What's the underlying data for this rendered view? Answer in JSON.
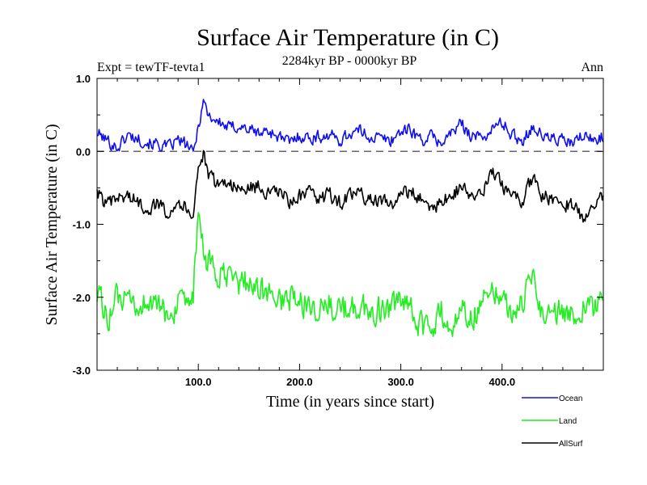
{
  "chart_data": {
    "type": "line",
    "title": "Surface Air Temperature (in C)",
    "subtitle": "2284kyr BP - 0000kyr BP",
    "expt_label": "Expt = tewTF-tevta1",
    "season_label": "Ann",
    "xlabel": "Time (in years since start)",
    "ylabel": "Surface Air Temperature (in C)",
    "xlim": [
      0,
      500
    ],
    "ylim": [
      -3.0,
      1.0
    ],
    "x_ticks": [
      100,
      200,
      300,
      400
    ],
    "x_tick_labels": [
      "100.0",
      "200.0",
      "300.0",
      "400.0"
    ],
    "y_ticks": [
      1.0,
      0.0,
      -1.0,
      -2.0,
      -3.0
    ],
    "y_tick_labels": [
      "1.0",
      "0.0",
      "-1.0",
      "-2.0",
      "-3.0"
    ],
    "reference_line": {
      "y": 0.0,
      "style": "dashed"
    },
    "legend": [
      {
        "name": "Ocean",
        "color": "#1010ee"
      },
      {
        "name": "Land",
        "color": "#22ee22"
      },
      {
        "name": "AllSurf",
        "color": "#000000"
      }
    ],
    "series": [
      {
        "name": "Ocean",
        "color": "#1010ee",
        "x": [
          0,
          10,
          20,
          30,
          40,
          50,
          60,
          70,
          80,
          90,
          95,
          100,
          105,
          110,
          120,
          130,
          140,
          150,
          160,
          170,
          180,
          190,
          200,
          210,
          220,
          230,
          240,
          250,
          260,
          270,
          280,
          290,
          300,
          310,
          320,
          330,
          340,
          350,
          360,
          370,
          380,
          390,
          400,
          410,
          420,
          430,
          440,
          450,
          460,
          470,
          480,
          490,
          500
        ],
        "values": [
          0.25,
          0.15,
          0.05,
          0.22,
          0.18,
          0.12,
          0.1,
          0.05,
          0.15,
          0.08,
          -0.05,
          0.35,
          0.7,
          0.5,
          0.4,
          0.32,
          0.35,
          0.3,
          0.25,
          0.28,
          0.2,
          0.12,
          0.22,
          0.18,
          0.2,
          0.22,
          0.15,
          0.25,
          0.28,
          0.2,
          0.18,
          0.15,
          0.28,
          0.3,
          0.15,
          0.2,
          0.12,
          0.25,
          0.38,
          0.22,
          0.18,
          0.3,
          0.4,
          0.22,
          0.15,
          0.35,
          0.2,
          0.18,
          0.15,
          0.1,
          0.22,
          0.15,
          0.22
        ]
      },
      {
        "name": "AllSurf",
        "color": "#000000",
        "x": [
          0,
          10,
          20,
          30,
          40,
          50,
          60,
          70,
          80,
          90,
          95,
          100,
          105,
          110,
          120,
          130,
          140,
          150,
          160,
          170,
          180,
          190,
          200,
          210,
          220,
          230,
          240,
          250,
          260,
          270,
          280,
          290,
          300,
          310,
          320,
          330,
          340,
          350,
          360,
          370,
          380,
          390,
          400,
          410,
          420,
          430,
          440,
          450,
          460,
          470,
          480,
          490,
          500
        ],
        "values": [
          -0.55,
          -0.75,
          -0.65,
          -0.6,
          -0.7,
          -0.78,
          -0.72,
          -0.82,
          -0.68,
          -0.8,
          -0.85,
          -0.2,
          -0.05,
          -0.35,
          -0.45,
          -0.4,
          -0.55,
          -0.5,
          -0.48,
          -0.6,
          -0.55,
          -0.7,
          -0.62,
          -0.58,
          -0.65,
          -0.6,
          -0.7,
          -0.62,
          -0.58,
          -0.66,
          -0.7,
          -0.72,
          -0.6,
          -0.55,
          -0.65,
          -0.78,
          -0.7,
          -0.6,
          -0.48,
          -0.62,
          -0.6,
          -0.3,
          -0.45,
          -0.6,
          -0.7,
          -0.35,
          -0.62,
          -0.65,
          -0.7,
          -0.75,
          -0.9,
          -0.7,
          -0.65
        ]
      },
      {
        "name": "Land",
        "color": "#22ee22",
        "x": [
          0,
          10,
          20,
          30,
          40,
          50,
          60,
          70,
          80,
          90,
          95,
          100,
          105,
          110,
          120,
          130,
          140,
          150,
          160,
          170,
          180,
          190,
          200,
          210,
          220,
          230,
          240,
          250,
          260,
          270,
          280,
          290,
          300,
          310,
          320,
          330,
          340,
          350,
          360,
          370,
          380,
          390,
          400,
          410,
          420,
          430,
          440,
          450,
          460,
          470,
          480,
          490,
          500
        ],
        "values": [
          -1.9,
          -2.3,
          -2.0,
          -2.1,
          -2.2,
          -2.0,
          -2.15,
          -2.25,
          -2.1,
          -2.2,
          -1.95,
          -0.85,
          -1.4,
          -1.55,
          -1.7,
          -1.75,
          -1.8,
          -1.78,
          -1.9,
          -1.95,
          -2.05,
          -2.0,
          -2.1,
          -2.05,
          -2.15,
          -2.1,
          -2.2,
          -2.18,
          -2.1,
          -2.25,
          -2.15,
          -2.2,
          -2.05,
          -2.2,
          -2.4,
          -2.45,
          -2.2,
          -2.5,
          -2.1,
          -2.3,
          -2.05,
          -1.8,
          -2.0,
          -2.25,
          -2.1,
          -1.7,
          -2.2,
          -2.25,
          -2.15,
          -2.3,
          -2.1,
          -2.2,
          -2.05
        ]
      }
    ]
  }
}
